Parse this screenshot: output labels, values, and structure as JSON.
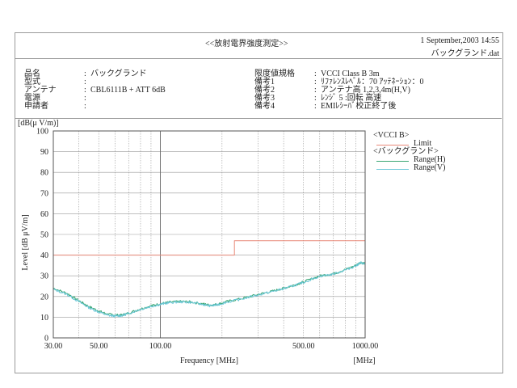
{
  "header": {
    "title": "<<放射電界強度測定>>",
    "date": "1 September,2003 14:55",
    "file": "バックグランド.dat"
  },
  "info_left": [
    {
      "key": "品名",
      "value": "バックグランド"
    },
    {
      "key": "型式",
      "value": ""
    },
    {
      "key": "アンテナ",
      "value": "CBL6111B + ATT 6dB"
    },
    {
      "key": "電源",
      "value": ""
    },
    {
      "key": "申請者",
      "value": ""
    }
  ],
  "info_right": [
    {
      "key": "限度値規格",
      "value": "VCCI Class B 3m"
    },
    {
      "key": "備考1",
      "value": "ﾘﾌｧﾚﾝｽﾚﾍﾞﾙ：70 ｱｯﾃﾈｰｼｮﾝ：0"
    },
    {
      "key": "備考2",
      "value": "アンテナ高 1,2,3,4m(H,V)"
    },
    {
      "key": "備考3",
      "value": "ﾚﾝｼﾞ 5 :回転  高速"
    },
    {
      "key": "備考4",
      "value": "EMIﾚｼｰﾊﾞ校正終了後"
    }
  ],
  "legend": {
    "group1": "<VCCI B>",
    "limit_label": "Limit",
    "group2": "<バックグランド>",
    "range_h_label": "Range(H)",
    "range_v_label": "Range(V)"
  },
  "colors": {
    "limit": "#e88878",
    "range_h": "#3aa673",
    "range_v": "#6dc8d8",
    "grid": "#9a9a9a",
    "axis": "#555555"
  },
  "chart_data": {
    "type": "line",
    "title": "",
    "xlabel": "Frequency [MHz]",
    "x_unit_label": "[MHz]",
    "ylabel": "Level [dB μV/m]",
    "y_unit_label": "[dB(μ V/m)]",
    "x_scale": "log",
    "xlim": [
      30,
      1000
    ],
    "ylim": [
      0,
      100
    ],
    "x_tick_labels": [
      "30.00",
      "50.00",
      "100.00",
      "500.00",
      "1000.00"
    ],
    "x_ticks": [
      30,
      50,
      100,
      500,
      1000
    ],
    "y_ticks": [
      0,
      10,
      20,
      30,
      40,
      50,
      60,
      70,
      80,
      90,
      100
    ],
    "grid": true,
    "legend_position": "top-right",
    "series": [
      {
        "name": "Limit",
        "points": [
          [
            30,
            40
          ],
          [
            230,
            40
          ],
          [
            230,
            47
          ],
          [
            1000,
            47
          ]
        ]
      },
      {
        "name": "Range(H)",
        "points": [
          [
            30,
            24
          ],
          [
            35,
            21.5
          ],
          [
            40,
            18
          ],
          [
            45,
            15
          ],
          [
            50,
            13
          ],
          [
            55,
            11.5
          ],
          [
            60,
            11
          ],
          [
            65,
            11
          ],
          [
            70,
            12
          ],
          [
            80,
            14
          ],
          [
            90,
            15.5
          ],
          [
            100,
            16.5
          ],
          [
            110,
            17.2
          ],
          [
            125,
            17.6
          ],
          [
            140,
            17.4
          ],
          [
            160,
            16.5
          ],
          [
            175,
            15.8
          ],
          [
            190,
            16.2
          ],
          [
            210,
            17.5
          ],
          [
            250,
            19
          ],
          [
            300,
            21
          ],
          [
            350,
            22.5
          ],
          [
            400,
            24
          ],
          [
            450,
            25.5
          ],
          [
            500,
            27
          ],
          [
            600,
            30
          ],
          [
            700,
            31
          ],
          [
            800,
            33
          ],
          [
            900,
            35
          ],
          [
            950,
            36.5
          ],
          [
            1000,
            36
          ]
        ]
      },
      {
        "name": "Range(V)",
        "points": [
          [
            30,
            23.5
          ],
          [
            35,
            21
          ],
          [
            40,
            17.5
          ],
          [
            45,
            14.5
          ],
          [
            50,
            12.5
          ],
          [
            55,
            11
          ],
          [
            60,
            10.5
          ],
          [
            65,
            10.8
          ],
          [
            70,
            11.8
          ],
          [
            80,
            13.8
          ],
          [
            90,
            15.2
          ],
          [
            100,
            16.2
          ],
          [
            110,
            17
          ],
          [
            125,
            17.4
          ],
          [
            140,
            17.2
          ],
          [
            160,
            16.2
          ],
          [
            175,
            15.5
          ],
          [
            190,
            16
          ],
          [
            210,
            17.2
          ],
          [
            250,
            18.8
          ],
          [
            300,
            20.8
          ],
          [
            350,
            22.3
          ],
          [
            400,
            23.8
          ],
          [
            450,
            25.3
          ],
          [
            500,
            26.8
          ],
          [
            600,
            29.8
          ],
          [
            700,
            30.8
          ],
          [
            800,
            32.8
          ],
          [
            900,
            34.8
          ],
          [
            950,
            36.3
          ],
          [
            1000,
            35.8
          ]
        ]
      }
    ]
  }
}
